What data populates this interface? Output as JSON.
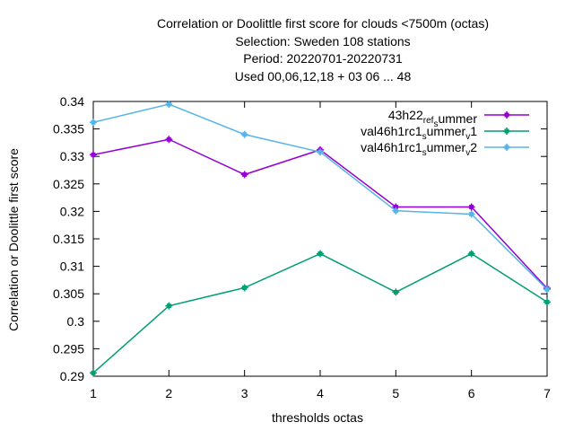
{
  "chart_data": {
    "type": "line",
    "title_lines": [
      "Correlation or Doolittle first score  for clouds <7500m (octas)",
      "Selection: Sweden    108 stations",
      "Period: 20220701-20220731",
      "Used  00,06,12,18  + 03 06 ... 48"
    ],
    "xlabel": "thresholds octas",
    "ylabel": "Correlation or Doolittle first score",
    "x": [
      1,
      2,
      3,
      4,
      5,
      6,
      7
    ],
    "xlim": [
      1,
      7
    ],
    "ylim": [
      0.29,
      0.34
    ],
    "xticks": [
      "1",
      "2",
      "3",
      "4",
      "5",
      "6",
      "7"
    ],
    "yticks": [
      "0.29",
      "0.295",
      "0.3",
      "0.305",
      "0.31",
      "0.315",
      "0.32",
      "0.325",
      "0.33",
      "0.335",
      "0.34"
    ],
    "legend_position": "top-right",
    "grid": false,
    "series": [
      {
        "name": "43h22_ref_summer",
        "legend": {
          "base": "43h22",
          "sub1": "ref",
          "mid": "",
          "sub2": "s",
          "tail": "ummer"
        },
        "color": "#9400d3",
        "values": [
          0.3303,
          0.3331,
          0.3267,
          0.3312,
          0.3208,
          0.3208,
          0.306
        ]
      },
      {
        "name": "val46h1rc1_summer_v1",
        "legend": {
          "base": "val46h1rc1",
          "sub1": "s",
          "mid": "ummer",
          "sub2": "v",
          "tail": "1"
        },
        "color": "#009e73",
        "values": [
          0.2906,
          0.3028,
          0.3061,
          0.3123,
          0.3053,
          0.3123,
          0.3035
        ]
      },
      {
        "name": "val46h1rc1_summer_v2",
        "legend": {
          "base": "val46h1rc1",
          "sub1": "s",
          "mid": "ummer",
          "sub2": "v",
          "tail": "2"
        },
        "color": "#56b4e9",
        "values": [
          0.3362,
          0.3395,
          0.334,
          0.3308,
          0.3201,
          0.3195,
          0.3058
        ]
      }
    ]
  }
}
